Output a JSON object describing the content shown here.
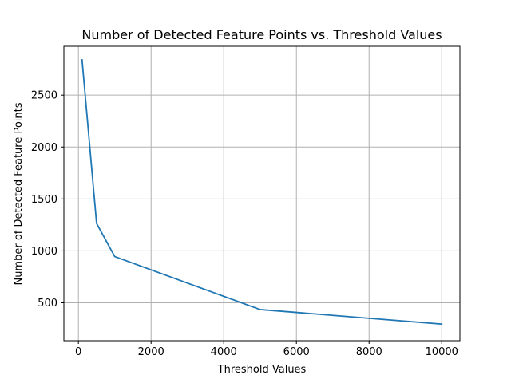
{
  "chart_data": {
    "type": "line",
    "title": "Number of Detected Feature Points vs. Threshold Values",
    "xlabel": "Threshold Values",
    "ylabel": "Number of Detected Feature Points",
    "xlim": [
      -400,
      10500
    ],
    "ylim": [
      135,
      2970
    ],
    "xticks": [
      0,
      2000,
      4000,
      6000,
      8000,
      10000
    ],
    "yticks": [
      500,
      1000,
      1500,
      2000,
      2500
    ],
    "grid": true,
    "line_color": "#1f77b4",
    "series": [
      {
        "x": [
          100,
          500,
          1000,
          5000,
          10000
        ],
        "y": [
          2840,
          1265,
          945,
          435,
          295
        ]
      }
    ]
  }
}
